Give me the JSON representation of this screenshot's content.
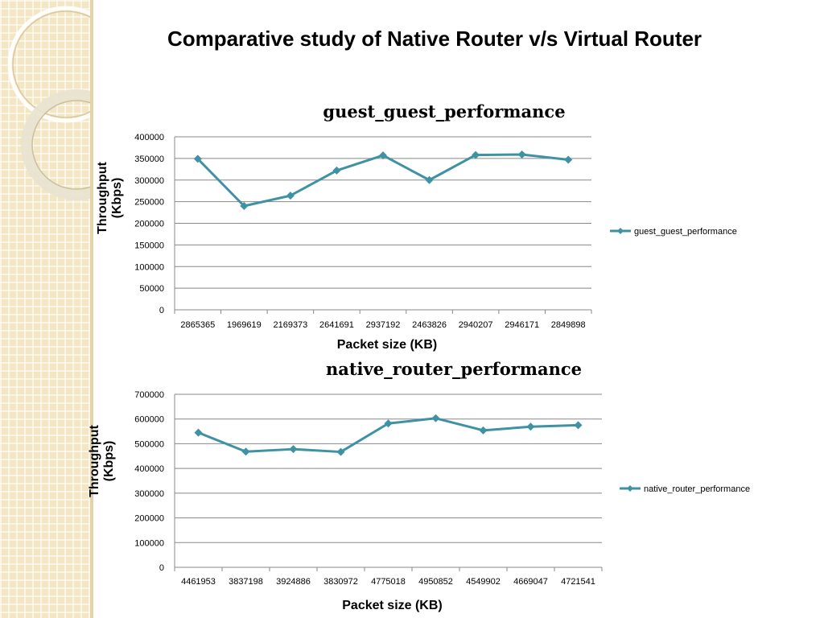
{
  "slide": {
    "title": "Comparative study of Native Router v/s Virtual Router"
  },
  "colors": {
    "series": "#3f91a4",
    "grid": "#888888",
    "decor": "#f3e6c4"
  },
  "chart_data": [
    {
      "type": "line",
      "title": "guest_guest_performance",
      "xlabel": "Packet size (KB)",
      "ylabel": "Throughput (Kbps)",
      "ylim": [
        0,
        400000
      ],
      "yticks": [
        0,
        50000,
        100000,
        150000,
        200000,
        250000,
        300000,
        350000,
        400000
      ],
      "categories": [
        "2865365",
        "1969619",
        "2169373",
        "2641691",
        "2937192",
        "2463826",
        "2940207",
        "2946171",
        "2849898"
      ],
      "series": [
        {
          "name": "guest_guest_performance",
          "values": [
            349000,
            240000,
            264000,
            322000,
            357000,
            300000,
            358000,
            359000,
            347000
          ]
        }
      ],
      "grid": true,
      "legend": "right",
      "marker": "diamond"
    },
    {
      "type": "line",
      "title": "native_router_performance",
      "xlabel": "Packet size (KB)",
      "ylabel": "Throughput (Kbps)",
      "ylim": [
        0,
        700000
      ],
      "yticks": [
        0,
        100000,
        200000,
        300000,
        400000,
        500000,
        600000,
        700000
      ],
      "categories": [
        "4461953",
        "3837198",
        "3924886",
        "3830972",
        "4775018",
        "4950852",
        "4549902",
        "4669047",
        "4721541"
      ],
      "series": [
        {
          "name": "native_router_performance",
          "values": [
            545000,
            468000,
            478000,
            467000,
            582000,
            603000,
            554000,
            569000,
            575000
          ]
        }
      ],
      "grid": true,
      "legend": "right",
      "marker": "diamond"
    }
  ]
}
